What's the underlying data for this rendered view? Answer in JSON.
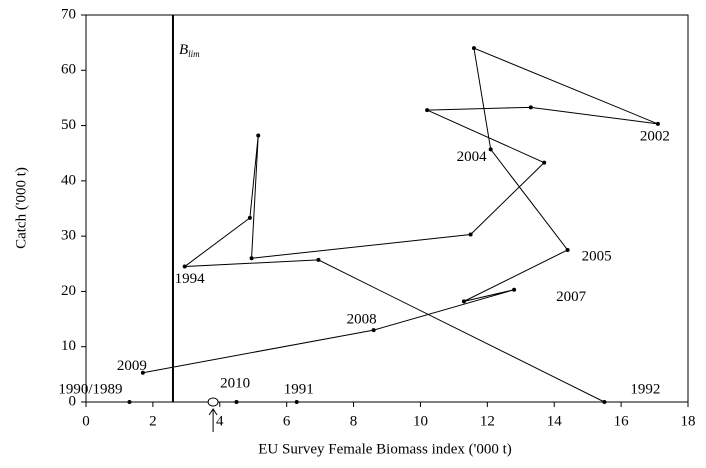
{
  "chart_data": {
    "type": "line",
    "x_label": "EU Survey Female Biomass index ('000 t)",
    "y_label": "Catch ('000 t)",
    "xlim": [
      0,
      18
    ],
    "xticks": [
      0,
      2,
      4,
      6,
      8,
      10,
      12,
      14,
      16,
      18
    ],
    "ylim": [
      0,
      70
    ],
    "yticks": [
      0,
      10,
      20,
      30,
      40,
      50,
      60,
      70
    ],
    "color": "#000000",
    "x": [
      15.5,
      6.95,
      2.95,
      4.9,
      5.15,
      4.95,
      11.5,
      13.7,
      10.2,
      13.3,
      17.1,
      11.6,
      12.1,
      14.4,
      11.3,
      12.8,
      8.6,
      1.7
    ],
    "y": [
      0,
      25.7,
      24.5,
      33.3,
      48.2,
      26,
      30.3,
      43.3,
      52.8,
      53.3,
      50.3,
      64,
      45.7,
      27.5,
      18.2,
      20.3,
      13,
      5.3
    ],
    "points": {
      "x": [
        1.3,
        4.5,
        6.3
      ],
      "y": [
        0,
        0,
        0
      ]
    },
    "open_point": {
      "x": 3.8,
      "y": 0
    },
    "reference_line": {
      "x": 2.6,
      "label": "B",
      "label_sub": "lim"
    },
    "annotations": [
      {
        "text": "1990/1989",
        "x": 1.3,
        "y": 0
      },
      {
        "text": "1991",
        "x": 6.3,
        "y": 0
      },
      {
        "text": "1992",
        "x": 15.5,
        "y": 0
      },
      {
        "text": "1994",
        "x": 2.95,
        "y": 24.5
      },
      {
        "text": "2002",
        "x": 17.1,
        "y": 50.3
      },
      {
        "text": "2004",
        "x": 12.1,
        "y": 45.7
      },
      {
        "text": "2005",
        "x": 14.4,
        "y": 27.5
      },
      {
        "text": "2007",
        "x": 12.8,
        "y": 20.3
      },
      {
        "text": "2008",
        "x": 8.6,
        "y": 13
      },
      {
        "text": "2009",
        "x": 1.7,
        "y": 5.3
      },
      {
        "text": "2010",
        "x": 3.8,
        "y": 0
      }
    ]
  }
}
